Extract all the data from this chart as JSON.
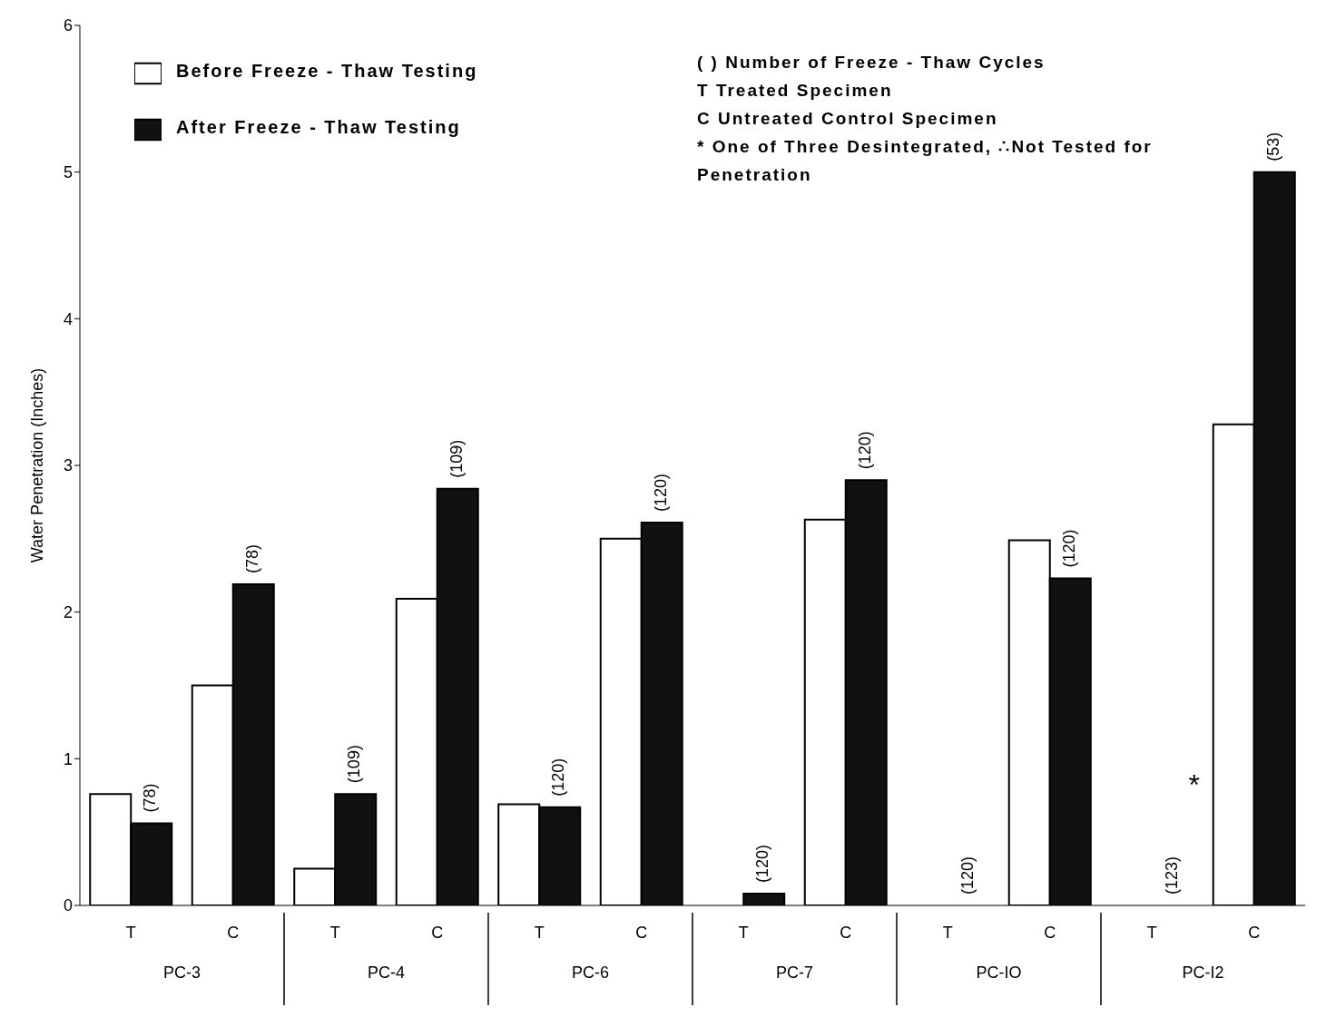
{
  "chart_data": {
    "type": "bar",
    "ylabel": "Water Penetration (Inches)",
    "categories": [
      "T",
      "C",
      "T",
      "C",
      "T",
      "C",
      "T",
      "C",
      "T",
      "C",
      "T",
      "C"
    ],
    "series": [
      {
        "name": "Before Freeze - Thaw Testing",
        "color": "#ffffff",
        "values": [
          0.76,
          1.5,
          0.25,
          2.09,
          0.69,
          2.5,
          0,
          2.63,
          0,
          2.49,
          0,
          3.28
        ]
      },
      {
        "name": "After Freeze - Thaw Testing",
        "color": "#111111",
        "values": [
          0.56,
          2.19,
          0.76,
          2.84,
          0.67,
          2.61,
          0.08,
          2.9,
          0,
          2.23,
          null,
          5
        ]
      }
    ],
    "annotations": [
      "PC-3",
      "PC-4",
      "PC-6",
      "PC-7",
      "PC-IO",
      "PC-I2",
      "(78)",
      "(78)",
      "(109)",
      "(109)",
      "(120)",
      "(120)",
      "(120)",
      "(120)",
      "(120)",
      "(120)",
      "(123)",
      "(53)",
      "*",
      "( )   Number of Freeze - Thaw Cycles",
      "T   Treated Specimen",
      "C   Untreated Control Specimen",
      "*   One of Three Desintegrated, ∴Not Tested for Penetration"
    ],
    "ylim": [
      0,
      6
    ],
    "yticks": [
      0,
      1,
      2,
      3,
      4,
      5,
      6
    ],
    "grid": false,
    "legend": "top left"
  }
}
